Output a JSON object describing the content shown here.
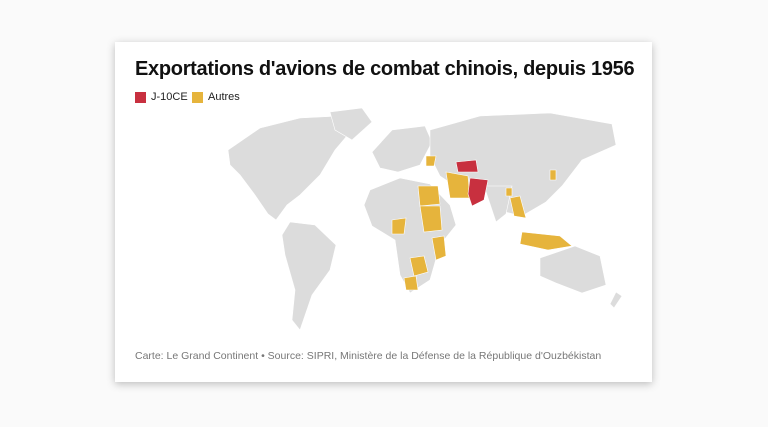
{
  "header": {
    "title": "Exportations d'avions de combat chinois, depuis 1956"
  },
  "legend": [
    {
      "label": "J-10CE",
      "color": "#c8303f"
    },
    {
      "label": "Autres",
      "color": "#e6b43c"
    }
  ],
  "map": {
    "land_color": "#dcdcdc"
  },
  "source": "Carte: Le Grand Continent • Source: SIPRI, Ministère de la Défense de la République d'Ouzbékistan"
}
